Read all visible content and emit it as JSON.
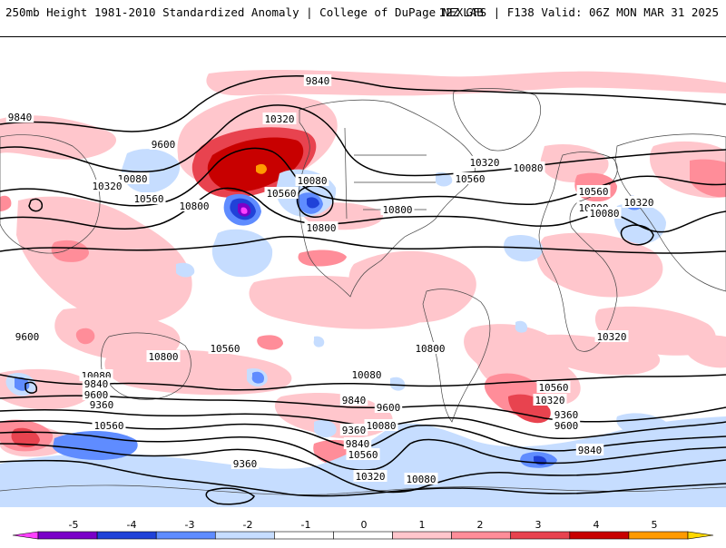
{
  "header": {
    "title_left": "250mb Height 1981-2010 Standardized Anomaly | College of DuPage NEXLAB",
    "title_right": "12Z GFS | F138 Valid: 06Z MON MAR 31 2025"
  },
  "map": {
    "contour_labels": [
      "9840",
      "10320",
      "9600",
      "10080",
      "10320",
      "10560",
      "10800",
      "10560",
      "10080",
      "9840",
      "10320",
      "10080",
      "10560",
      "10800",
      "10800",
      "10320",
      "10560",
      "10080",
      "9600",
      "10800",
      "10560",
      "10800",
      "10320",
      "10080",
      "9840",
      "9600",
      "9360",
      "10560",
      "10800",
      "10560",
      "10320",
      "9840",
      "10080",
      "9600",
      "10080",
      "9360",
      "9840",
      "10560",
      "10320",
      "10080",
      "9840",
      "9600",
      "9360",
      "10800",
      "9360"
    ],
    "colors": {
      "pos1": "#ffc6cc",
      "pos2": "#ff8d99",
      "pos3": "#e8434f",
      "pos4": "#c80000",
      "pos5": "#ff9a00",
      "pos6": "#ffd800",
      "neg1": "#c6ddff",
      "neg2": "#5f8cff",
      "neg3": "#2042d8",
      "neg4": "#7a00c8",
      "neg5": "#ff40ff"
    }
  },
  "colorbar": {
    "ticks": [
      "-5",
      "-4",
      "-3",
      "-2",
      "-1",
      "0",
      "1",
      "2",
      "3",
      "4",
      "5"
    ],
    "colors": [
      "#ff40ff",
      "#7a00c8",
      "#2042d8",
      "#5f8cff",
      "#c6ddff",
      "#ffffff",
      "#ffffff",
      "#ffc6cc",
      "#ff8d99",
      "#e8434f",
      "#c80000",
      "#ff9a00",
      "#ffd800"
    ]
  }
}
